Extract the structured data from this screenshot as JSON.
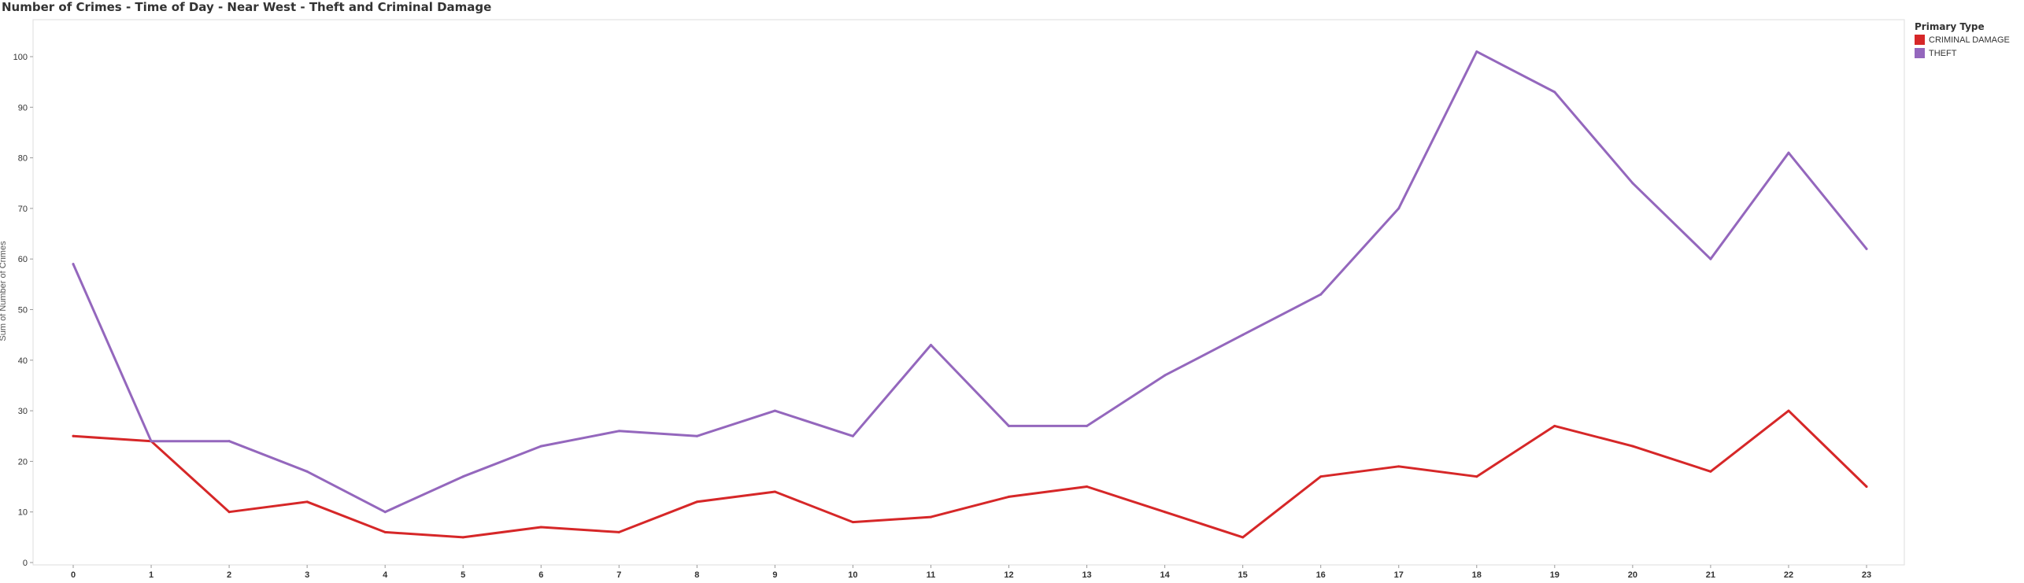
{
  "chart_data": {
    "type": "line",
    "title": "Number of Crimes - Time of Day - Near West - Theft and Criminal Damage",
    "xlabel": "",
    "ylabel": "Sum of Number of Crimes",
    "x": [
      0,
      1,
      2,
      3,
      4,
      5,
      6,
      7,
      8,
      9,
      10,
      11,
      12,
      13,
      14,
      15,
      16,
      17,
      18,
      19,
      20,
      21,
      22,
      23
    ],
    "ylim": [
      0,
      105
    ],
    "yticks": [
      0,
      10,
      20,
      30,
      40,
      50,
      60,
      70,
      80,
      90,
      100
    ],
    "series": [
      {
        "name": "CRIMINAL DAMAGE",
        "color": "#d62728",
        "values": [
          25,
          24,
          10,
          12,
          6,
          5,
          7,
          6,
          12,
          14,
          8,
          9,
          13,
          15,
          10,
          5,
          17,
          19,
          17,
          27,
          23,
          18,
          30,
          15
        ]
      },
      {
        "name": "THEFT",
        "color": "#9467bd",
        "values": [
          59,
          24,
          24,
          18,
          10,
          17,
          23,
          26,
          25,
          30,
          25,
          43,
          27,
          27,
          37,
          45,
          53,
          70,
          101,
          93,
          75,
          60,
          81,
          62
        ]
      }
    ],
    "legend": {
      "title": "Primary Type",
      "placement": "right"
    }
  }
}
